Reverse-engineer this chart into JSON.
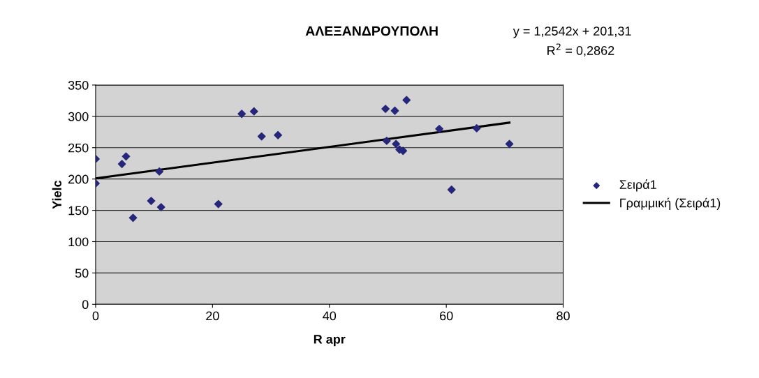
{
  "chart_data": {
    "type": "scatter",
    "title": "ΑΛΕΞΑΝΔΡΟΥΠΟΛΗ",
    "xlabel": "R apr",
    "ylabel": "Yielc",
    "annotations": [
      "y = 1,2542x + 201,31",
      "R$^{2}$ = 0,2862"
    ],
    "xlim": [
      0,
      80
    ],
    "xticks": [
      0,
      20,
      40,
      60,
      80
    ],
    "ylim": [
      0,
      350
    ],
    "yticks": [
      0,
      50,
      100,
      150,
      200,
      250,
      300,
      350
    ],
    "grid": "y",
    "legend": "right",
    "marker": "diamond",
    "series": [
      {
        "name": "Σειρά1",
        "color": "#26267a",
        "x": [
          0,
          0,
          4.5,
          5.2,
          10.9,
          9.5,
          11.2,
          6.4,
          21.0,
          25.0,
          27.1,
          28.4,
          31.2,
          49.6,
          51.2,
          53.2,
          49.8,
          51.4,
          52.0,
          52.6,
          58.8,
          60.9,
          65.2,
          70.8
        ],
        "values": [
          232,
          193,
          224,
          236,
          212,
          165,
          155,
          138,
          160,
          304,
          308,
          268,
          270,
          312,
          309,
          326,
          261,
          256,
          247,
          245,
          280,
          183,
          281,
          256
        ]
      },
      {
        "name": "Γραμμική (Σειρά1)",
        "type": "line",
        "marker": "none",
        "color": "#000000",
        "x": [
          0,
          70.8
        ],
        "values": [
          201,
          290
        ]
      }
    ]
  }
}
